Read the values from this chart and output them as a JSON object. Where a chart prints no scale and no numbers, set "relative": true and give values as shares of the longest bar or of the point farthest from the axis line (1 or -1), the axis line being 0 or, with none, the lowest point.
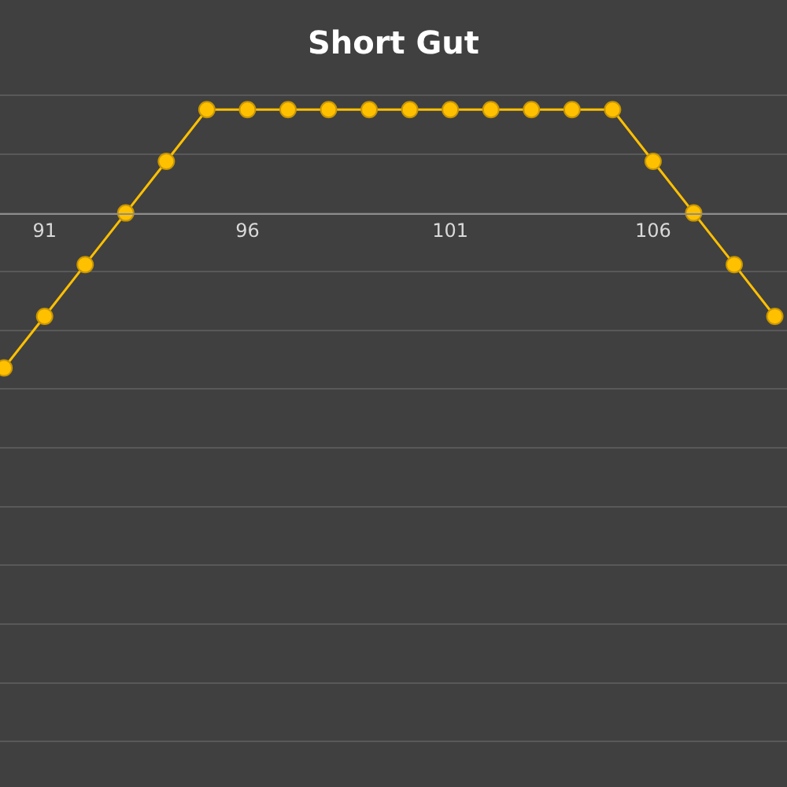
{
  "chart_data": {
    "type": "line",
    "title": "Short Gut",
    "relative": true,
    "x": [
      90,
      91,
      92,
      93,
      94,
      95,
      96,
      97,
      98,
      99,
      100,
      101,
      102,
      103,
      104,
      105,
      106,
      107,
      108,
      109
    ],
    "xlim": [
      89.9,
      109.3
    ],
    "xticks": [
      91,
      96,
      101,
      106
    ],
    "series": [
      {
        "color": "#ffc000",
        "values": [
          -1,
          -0.667,
          -0.333,
          0,
          0.333,
          0.667,
          0.667,
          0.667,
          0.667,
          0.667,
          0.667,
          0.667,
          0.667,
          0.667,
          0.667,
          0.667,
          0.333,
          0,
          -0.333,
          -0.667
        ]
      }
    ],
    "marker": "circle",
    "line_style": "solid",
    "grid": "y",
    "legend": false
  }
}
